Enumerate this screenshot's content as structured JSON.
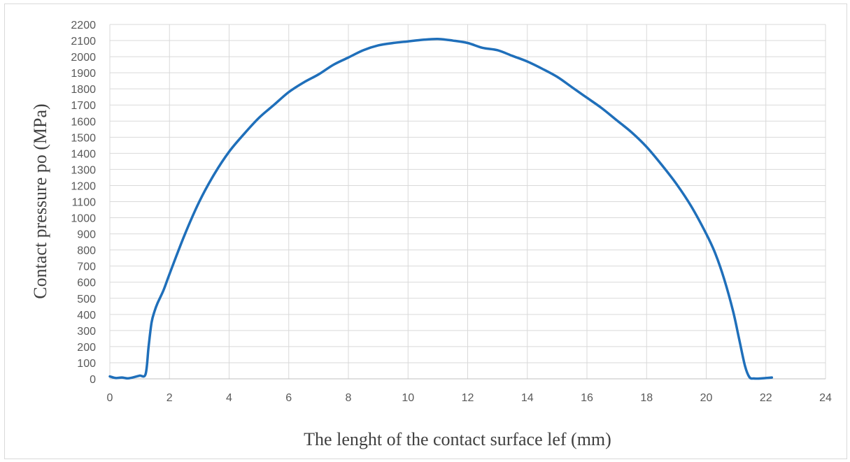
{
  "chart_data": {
    "type": "line",
    "xlabel": "The lenght of the contact surface  lef (mm)",
    "ylabel": "Contact pressure po (MPa)",
    "xlim": [
      0,
      24
    ],
    "ylim": [
      0,
      2200
    ],
    "x_ticks": [
      "0",
      "2",
      "4",
      "6",
      "8",
      "10",
      "12",
      "14",
      "16",
      "18",
      "20",
      "22",
      "24"
    ],
    "y_ticks": [
      "0",
      "100",
      "200",
      "300",
      "400",
      "500",
      "600",
      "700",
      "800",
      "900",
      "1000",
      "1100",
      "1200",
      "1300",
      "1400",
      "1500",
      "1600",
      "1700",
      "1800",
      "1900",
      "2000",
      "2100",
      "2200"
    ],
    "grid": "horizontal",
    "legend": "none",
    "series": [
      {
        "color": "#1f6fba",
        "x": [
          0,
          0.2,
          0.4,
          0.6,
          0.8,
          1.0,
          1.2,
          1.3,
          1.4,
          1.5,
          1.6,
          1.8,
          2.0,
          2.5,
          3.0,
          3.5,
          4.0,
          4.5,
          5.0,
          5.5,
          6.0,
          6.5,
          7.0,
          7.5,
          8.0,
          8.5,
          9.0,
          9.5,
          10.0,
          10.5,
          11.0,
          11.5,
          12.0,
          12.5,
          13.0,
          13.5,
          14.0,
          14.5,
          15.0,
          15.5,
          16.0,
          16.5,
          17.0,
          17.5,
          18.0,
          18.5,
          19.0,
          19.5,
          20.0,
          20.3,
          20.6,
          20.9,
          21.1,
          21.3,
          21.45,
          21.6,
          21.8,
          22.0,
          22.2
        ],
        "y": [
          15,
          5,
          8,
          3,
          10,
          20,
          30,
          200,
          350,
          420,
          470,
          550,
          650,
          890,
          1100,
          1270,
          1410,
          1520,
          1620,
          1700,
          1780,
          1840,
          1890,
          1950,
          1995,
          2040,
          2070,
          2085,
          2095,
          2105,
          2110,
          2100,
          2085,
          2055,
          2040,
          2005,
          1970,
          1925,
          1875,
          1810,
          1745,
          1680,
          1605,
          1530,
          1440,
          1330,
          1210,
          1070,
          900,
          780,
          620,
          420,
          250,
          80,
          10,
          2,
          2,
          5,
          8
        ]
      }
    ]
  }
}
